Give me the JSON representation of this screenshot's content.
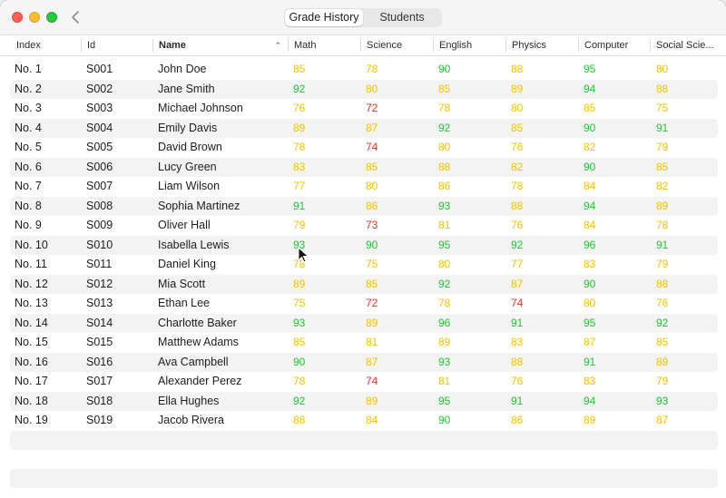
{
  "window": {
    "tabs": [
      {
        "label": "Grade History",
        "active": true
      },
      {
        "label": "Students",
        "active": false
      }
    ]
  },
  "table": {
    "columns": [
      "Index",
      "Id",
      "Name",
      "Math",
      "Science",
      "English",
      "Physics",
      "Computer",
      "Social Scie..."
    ],
    "sort_column": "Name",
    "sort_indicator": "⌃",
    "rows": [
      {
        "index": "No. 1",
        "id": "S001",
        "name": "John Doe",
        "grades": [
          "85",
          "78",
          "90",
          "88",
          "95",
          "80"
        ]
      },
      {
        "index": "No. 2",
        "id": "S002",
        "name": "Jane Smith",
        "grades": [
          "92",
          "80",
          "85",
          "89",
          "94",
          "88"
        ]
      },
      {
        "index": "No. 3",
        "id": "S003",
        "name": "Michael Johnson",
        "grades": [
          "76",
          "72",
          "78",
          "80",
          "85",
          "75"
        ]
      },
      {
        "index": "No. 4",
        "id": "S004",
        "name": "Emily Davis",
        "grades": [
          "89",
          "87",
          "92",
          "85",
          "90",
          "91"
        ]
      },
      {
        "index": "No. 5",
        "id": "S005",
        "name": "David Brown",
        "grades": [
          "78",
          "74",
          "80",
          "76",
          "82",
          "79"
        ]
      },
      {
        "index": "No. 6",
        "id": "S006",
        "name": "Lucy Green",
        "grades": [
          "83",
          "85",
          "88",
          "82",
          "90",
          "85"
        ]
      },
      {
        "index": "No. 7",
        "id": "S007",
        "name": "Liam Wilson",
        "grades": [
          "77",
          "80",
          "86",
          "78",
          "84",
          "82"
        ]
      },
      {
        "index": "No. 8",
        "id": "S008",
        "name": "Sophia Martinez",
        "grades": [
          "91",
          "86",
          "93",
          "88",
          "94",
          "89"
        ]
      },
      {
        "index": "No. 9",
        "id": "S009",
        "name": "Oliver Hall",
        "grades": [
          "79",
          "73",
          "81",
          "76",
          "84",
          "78"
        ]
      },
      {
        "index": "No. 10",
        "id": "S010",
        "name": "Isabella Lewis",
        "grades": [
          "93",
          "90",
          "95",
          "92",
          "96",
          "91"
        ]
      },
      {
        "index": "No. 11",
        "id": "S011",
        "name": "Daniel King",
        "grades": [
          "78",
          "75",
          "80",
          "77",
          "83",
          "79"
        ]
      },
      {
        "index": "No. 12",
        "id": "S012",
        "name": "Mia Scott",
        "grades": [
          "89",
          "85",
          "92",
          "87",
          "90",
          "88"
        ]
      },
      {
        "index": "No. 13",
        "id": "S013",
        "name": "Ethan Lee",
        "grades": [
          "75",
          "72",
          "78",
          "74",
          "80",
          "76"
        ]
      },
      {
        "index": "No. 14",
        "id": "S014",
        "name": "Charlotte Baker",
        "grades": [
          "93",
          "89",
          "96",
          "91",
          "95",
          "92"
        ]
      },
      {
        "index": "No. 15",
        "id": "S015",
        "name": "Matthew Adams",
        "grades": [
          "85",
          "81",
          "89",
          "83",
          "87",
          "85"
        ]
      },
      {
        "index": "No. 16",
        "id": "S016",
        "name": "Ava Campbell",
        "grades": [
          "90",
          "87",
          "93",
          "88",
          "91",
          "89"
        ]
      },
      {
        "index": "No. 17",
        "id": "S017",
        "name": "Alexander Perez",
        "grades": [
          "78",
          "74",
          "81",
          "76",
          "83",
          "79"
        ]
      },
      {
        "index": "No. 18",
        "id": "S018",
        "name": "Ella Hughes",
        "grades": [
          "92",
          "89",
          "95",
          "91",
          "94",
          "93"
        ]
      },
      {
        "index": "No. 19",
        "id": "S019",
        "name": "Jacob Rivera",
        "grades": [
          "88",
          "84",
          "90",
          "86",
          "89",
          "87"
        ]
      }
    ]
  },
  "grade_colors": {
    "high": "#2cc13b",
    "mid": "#f2c200",
    "low": "#e5322b"
  },
  "grade_thresholds": {
    "high": 90,
    "low": 75
  },
  "icons": {
    "back": "chevron-left-icon",
    "cursor": "pointer-cursor-icon"
  }
}
